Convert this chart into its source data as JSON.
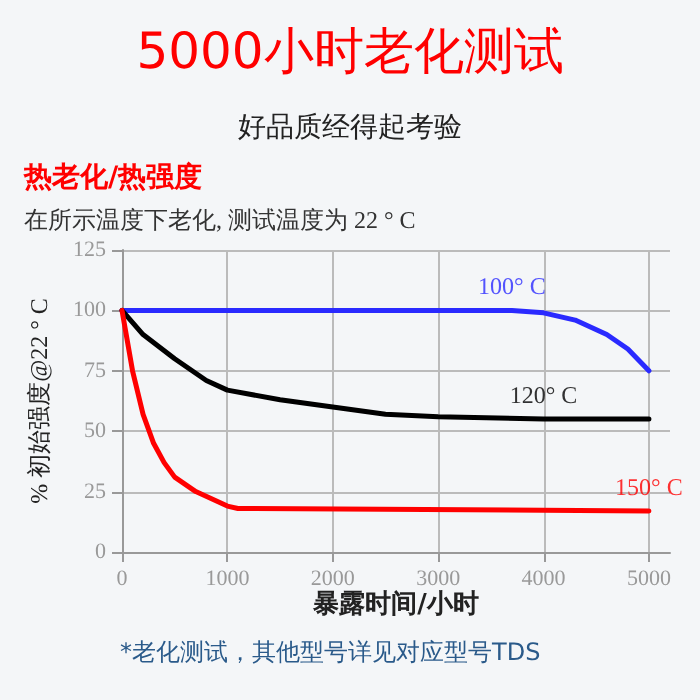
{
  "chart_data": {
    "type": "line",
    "title": "5000小时老化测试",
    "subtitle": "好品质经得起考验",
    "xlabel": "暴露时间/小时",
    "ylabel": "% 初始强度@22 ° C",
    "annotations": [
      "热老化/热强度",
      "在所示温度下老化, 测试温度为 22 ° C",
      "*老化测试，其他型号详见对应型号TDS"
    ],
    "series": [
      {
        "name": "100° C",
        "color": "#2a2aff",
        "x": [
          0,
          1000,
          2000,
          3000,
          3700,
          4000,
          4300,
          4600,
          4800,
          5000
        ],
        "values": [
          100,
          100,
          100,
          100,
          100,
          99,
          96,
          90,
          84,
          75
        ]
      },
      {
        "name": "120° C",
        "color": "#000000",
        "x": [
          0,
          200,
          500,
          800,
          1000,
          1500,
          2000,
          2500,
          3000,
          4000,
          5000
        ],
        "values": [
          100,
          90,
          80,
          71,
          67,
          63,
          60,
          57,
          56,
          55,
          55
        ]
      },
      {
        "name": "150° C",
        "color": "#ff0000",
        "x": [
          0,
          100,
          200,
          300,
          400,
          500,
          700,
          1000,
          1100,
          5000
        ],
        "values": [
          100,
          75,
          57,
          45,
          37,
          31,
          25,
          19,
          18,
          17
        ]
      }
    ],
    "xlim": [
      0,
      5200
    ],
    "xticks": [
      0,
      1000,
      2000,
      3000,
      4000,
      5000
    ],
    "ylim": [
      0,
      125
    ],
    "yticks": [
      0,
      25,
      50,
      75,
      100,
      125
    ],
    "grid": true,
    "marker": "none",
    "line_style": "solid"
  }
}
